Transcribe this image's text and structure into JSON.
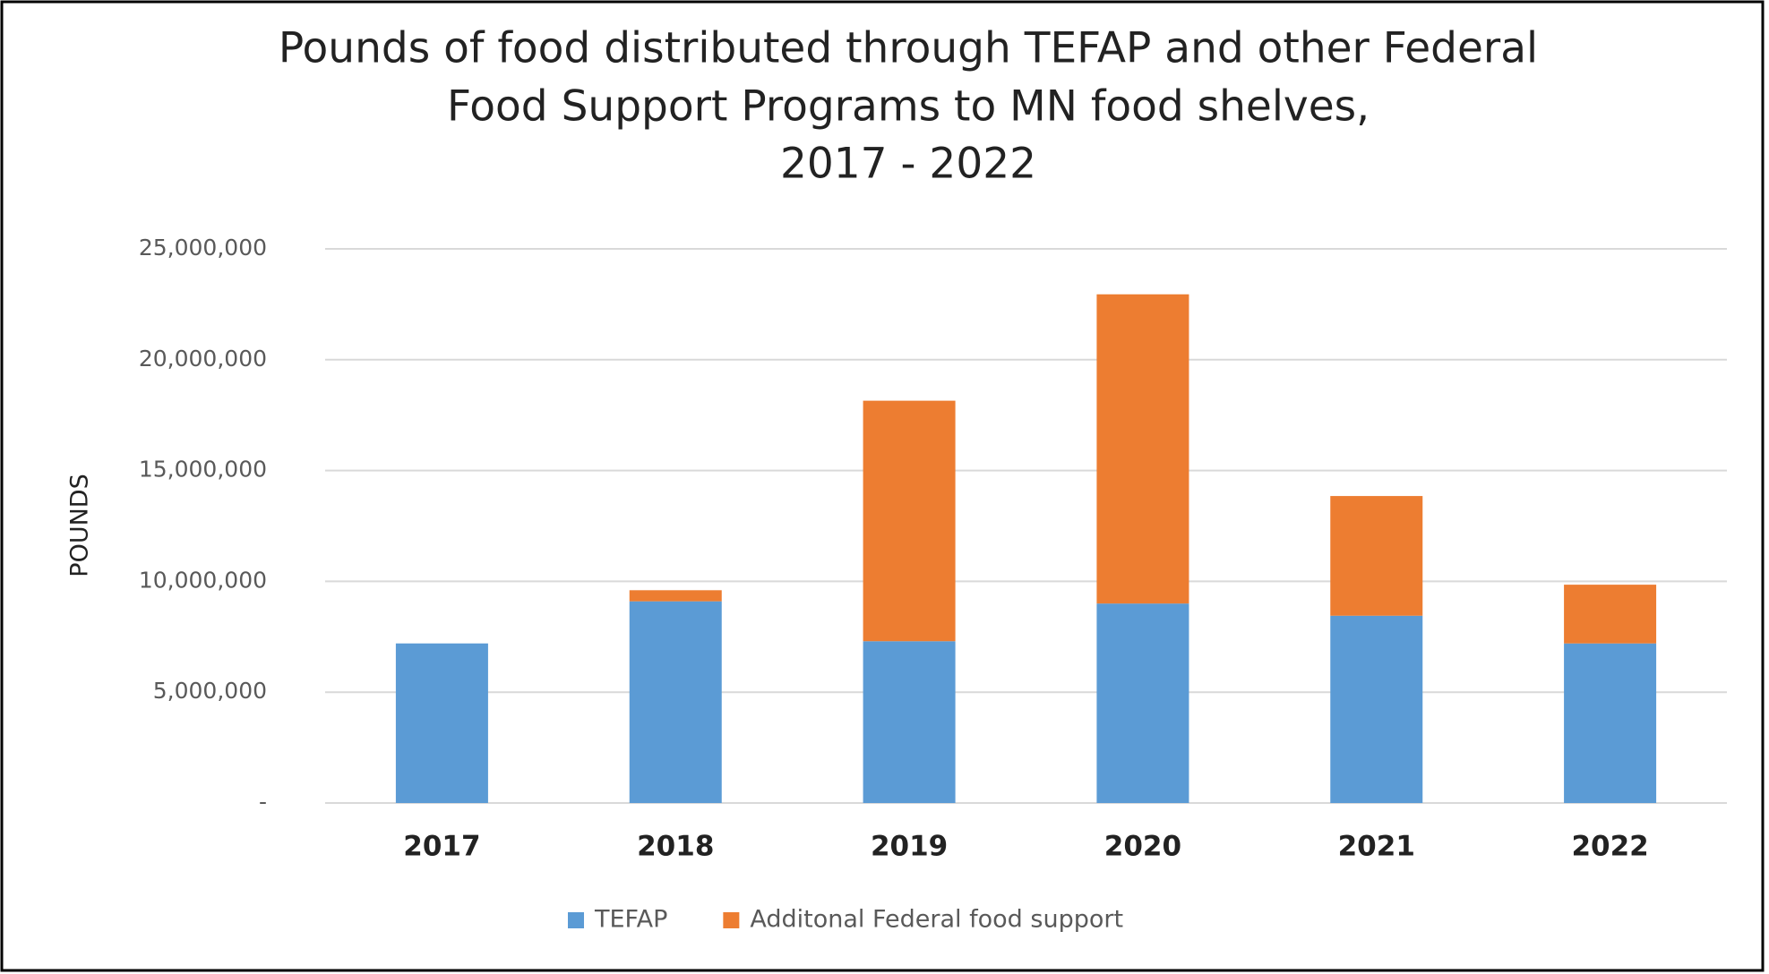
{
  "chart_data": {
    "type": "stacked_bar",
    "title": [
      "Pounds of food distributed through TEFAP and other Federal",
      "Food Support Programs to MN food shelves,",
      "2017 - 2022"
    ],
    "y_label": "POUNDS",
    "categories": [
      "2017",
      "2018",
      "2019",
      "2020",
      "2021",
      "2022"
    ],
    "series": [
      {
        "name": "TEFAP",
        "color": "#5b9bd5",
        "values": [
          7200000,
          9100000,
          7300000,
          9000000,
          8450000,
          7200000
        ]
      },
      {
        "name": "Additonal Federal food support",
        "color": "#ed7d31",
        "values": [
          null,
          500000,
          10850000,
          13950000,
          5400000,
          2650000
        ]
      }
    ],
    "ylim": [
      0,
      25000000
    ],
    "yticks": [
      {
        "value": 0,
        "label": "-"
      },
      {
        "value": 5000000,
        "label": "5,000,000"
      },
      {
        "value": 10000000,
        "label": "10,000,000"
      },
      {
        "value": 15000000,
        "label": "15,000,000"
      },
      {
        "value": 20000000,
        "label": "20,000,000"
      },
      {
        "value": 25000000,
        "label": "25,000,000"
      }
    ],
    "grid": true,
    "legend": "bottom"
  }
}
